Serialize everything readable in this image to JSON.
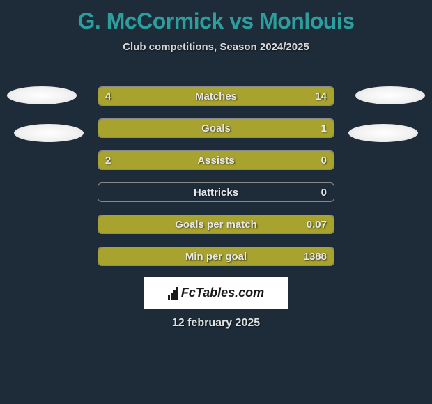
{
  "title": "G. McCormick vs Monlouis",
  "subtitle": "Club competitions, Season 2024/2025",
  "date": "12 february 2025",
  "logo_text": "FcTables.com",
  "colors": {
    "background": "#1e2c3a",
    "title": "#2d9e9e",
    "bar_fill": "#a8a32f",
    "text_light": "#e8e8e8",
    "white": "#ffffff"
  },
  "stats": [
    {
      "label": "Matches",
      "left_value": "4",
      "right_value": "14",
      "left_pct": 22,
      "right_pct": 78
    },
    {
      "label": "Goals",
      "left_value": "",
      "right_value": "1",
      "left_pct": 0,
      "right_pct": 100
    },
    {
      "label": "Assists",
      "left_value": "2",
      "right_value": "0",
      "left_pct": 100,
      "right_pct": 0
    },
    {
      "label": "Hattricks",
      "left_value": "",
      "right_value": "0",
      "left_pct": 0,
      "right_pct": 0
    },
    {
      "label": "Goals per match",
      "left_value": "",
      "right_value": "0.07",
      "left_pct": 0,
      "right_pct": 100
    },
    {
      "label": "Min per goal",
      "left_value": "",
      "right_value": "1388",
      "left_pct": 0,
      "right_pct": 100
    }
  ]
}
